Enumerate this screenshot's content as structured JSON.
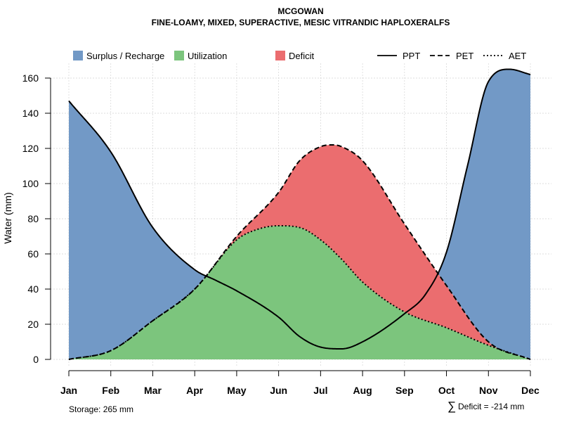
{
  "chart_data": {
    "type": "area",
    "title": "MCGOWAN",
    "subtitle": "FINE-LOAMY, MIXED, SUPERACTIVE, MESIC VITRANDIC HAPLOXERALFS",
    "xlabel": "",
    "ylabel": "Water (mm)",
    "categories": [
      "Jan",
      "Feb",
      "Mar",
      "Apr",
      "May",
      "Jun",
      "Jul",
      "Aug",
      "Sep",
      "Oct",
      "Nov",
      "Dec"
    ],
    "ylim": [
      0,
      168
    ],
    "yticks": [
      0,
      20,
      40,
      60,
      80,
      100,
      120,
      140,
      160
    ],
    "grid": true,
    "legend_position": "top",
    "series": [
      {
        "name": "PPT",
        "line_style": "solid",
        "x": [
          1,
          2,
          3,
          4,
          4.5,
          5,
          6,
          6.5,
          7,
          7.5,
          8,
          9,
          9.5,
          10,
          10.5,
          11,
          11.5,
          12
        ],
        "values": [
          147,
          118,
          75,
          51,
          45,
          39,
          24,
          13,
          7,
          6,
          10,
          26,
          37,
          61,
          110,
          158,
          165,
          162
        ]
      },
      {
        "name": "PET",
        "line_style": "dashed",
        "x": [
          1,
          2,
          3,
          4,
          5,
          6,
          6.5,
          7,
          7.3,
          7.5,
          8,
          9,
          10,
          11,
          12
        ],
        "values": [
          0,
          5,
          22,
          40,
          70,
          95,
          113,
          121,
          122,
          121,
          113,
          77,
          42,
          10,
          0
        ]
      },
      {
        "name": "AET",
        "line_style": "dotted",
        "x": [
          1,
          2,
          3,
          4,
          5,
          5.5,
          6,
          6.5,
          7,
          7.5,
          8,
          9,
          10,
          11,
          12
        ],
        "values": [
          0,
          5,
          22,
          40,
          68,
          74,
          76,
          75,
          68,
          57,
          44,
          27,
          18,
          8,
          0
        ]
      }
    ],
    "fills": [
      {
        "name": "Surplus / Recharge",
        "color": "#7299C6",
        "between": [
          "PPT",
          "PET"
        ],
        "where": "PPT above PET"
      },
      {
        "name": "Utilization",
        "color": "#7CC57D",
        "between": [
          "AET",
          "baseline"
        ],
        "where": "under AET"
      },
      {
        "name": "Deficit",
        "color": "#EB6D6F",
        "between": [
          "PET",
          "AET"
        ],
        "where": "PET above AET"
      }
    ],
    "annotations": {
      "storage": "Storage: 265 mm",
      "deficit_symbol": "∑",
      "deficit": "Deficit = -214 mm"
    }
  },
  "colors": {
    "surplus": "#7299C6",
    "utilization": "#7CC57D",
    "deficit": "#EB6D6F",
    "line": "#000000",
    "grid": "#d3d3d3"
  }
}
